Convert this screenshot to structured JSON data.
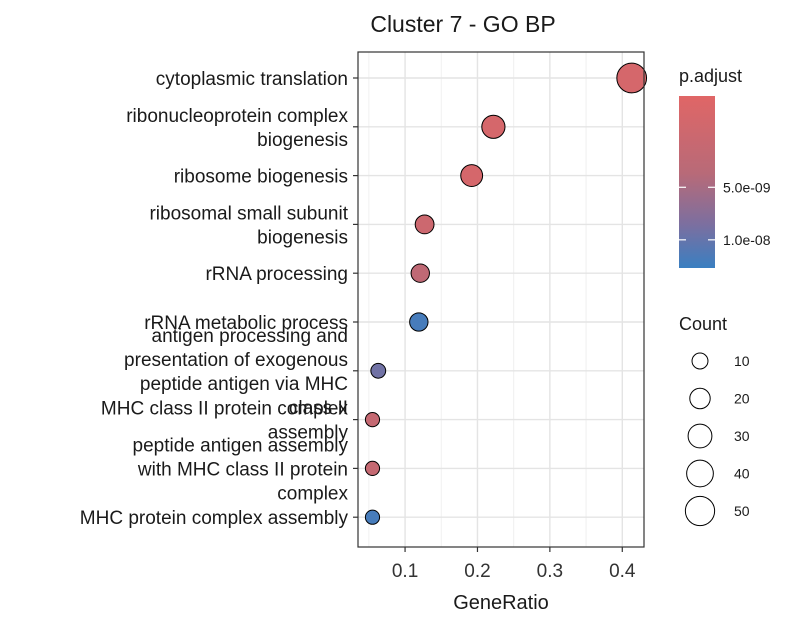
{
  "chart_data": {
    "type": "scatter",
    "title": "Cluster 7 - GO BP",
    "xlabel": "GeneRatio",
    "ylabel": "",
    "xlim": [
      0.035,
      0.43
    ],
    "xticks": [
      "0.1",
      "0.2",
      "0.3",
      "0.4"
    ],
    "xtick_values": [
      0.1,
      0.2,
      0.3,
      0.4
    ],
    "grid": true,
    "legend_position": "right",
    "points": [
      {
        "term_lines": [
          "cytoplasmic translation"
        ],
        "gene_ratio": 0.413,
        "count": 52,
        "p_adjust": 2e-09
      },
      {
        "term_lines": [
          "ribonucleoprotein complex",
          "biogenesis"
        ],
        "gene_ratio": 0.222,
        "count": 28,
        "p_adjust": 2e-09
      },
      {
        "term_lines": [
          "ribosome biogenesis"
        ],
        "gene_ratio": 0.192,
        "count": 24,
        "p_adjust": 2e-09
      },
      {
        "term_lines": [
          "ribosomal small subunit",
          "biogenesis"
        ],
        "gene_ratio": 0.127,
        "count": 16,
        "p_adjust": 2.5e-09
      },
      {
        "term_lines": [
          "rRNA processing"
        ],
        "gene_ratio": 0.121,
        "count": 15,
        "p_adjust": 3.5e-09
      },
      {
        "term_lines": [
          "rRNA metabolic process"
        ],
        "gene_ratio": 0.119,
        "count": 15,
        "p_adjust": 1.3e-08
      },
      {
        "term_lines": [
          "antigen processing and",
          "presentation of exogenous",
          "peptide antigen via MHC",
          "class II"
        ],
        "gene_ratio": 0.063,
        "count": 8,
        "p_adjust": 9e-09
      },
      {
        "term_lines": [
          "MHC class II protein complex",
          "assembly"
        ],
        "gene_ratio": 0.055,
        "count": 7,
        "p_adjust": 3e-09
      },
      {
        "term_lines": [
          "peptide antigen assembly",
          "with MHC class II protein",
          "complex"
        ],
        "gene_ratio": 0.055,
        "count": 7,
        "p_adjust": 3e-09
      },
      {
        "term_lines": [
          "MHC protein complex assembly"
        ],
        "gene_ratio": 0.055,
        "count": 7,
        "p_adjust": 1.3e-08
      }
    ],
    "color_legend": {
      "title": "p.adjust",
      "range": [
        1.5e-09,
        1.45e-08
      ],
      "ticks": [
        {
          "label": "5.0e-09",
          "value": 5e-09
        },
        {
          "label": "1.0e-08",
          "value": 1e-08
        }
      ],
      "low_color": "#e06666",
      "high_color": "#3a7fc1"
    },
    "size_legend": {
      "title": "Count",
      "values": [
        10,
        20,
        30,
        40,
        50
      ]
    }
  }
}
